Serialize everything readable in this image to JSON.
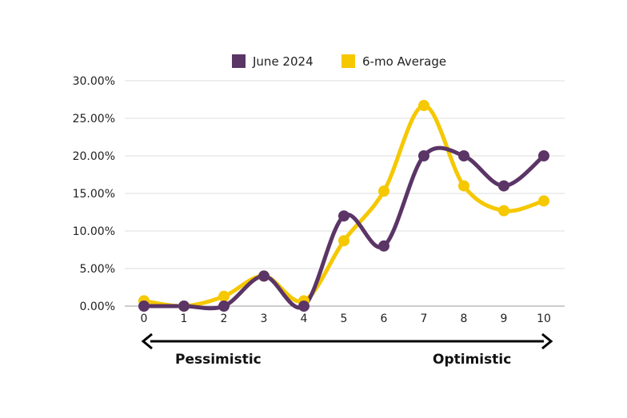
{
  "chart_data": {
    "type": "line",
    "x": [
      0,
      1,
      2,
      3,
      4,
      5,
      6,
      7,
      8,
      9,
      10
    ],
    "ylim": [
      0,
      30
    ],
    "y_ticks": [
      "0.00%",
      "5.00%",
      "10.00%",
      "15.00%",
      "20.00%",
      "25.00%",
      "30.00%"
    ],
    "x_ticks": [
      "0",
      "1",
      "2",
      "3",
      "4",
      "5",
      "6",
      "7",
      "8",
      "9",
      "10"
    ],
    "grid": "horizontal",
    "legend_position": "top",
    "series": [
      {
        "name": "June 2024",
        "color": "#5a3566",
        "values": [
          0,
          0,
          0,
          4,
          0,
          12,
          8,
          20,
          20,
          16,
          20
        ]
      },
      {
        "name": "6-mo Average",
        "color": "#f5c800",
        "values": [
          0.7,
          0,
          1.3,
          4,
          0.7,
          8.7,
          15.3,
          26.7,
          16,
          12.7,
          14
        ]
      }
    ],
    "scale_left_label": "Pessimistic",
    "scale_right_label": "Optimistic"
  }
}
